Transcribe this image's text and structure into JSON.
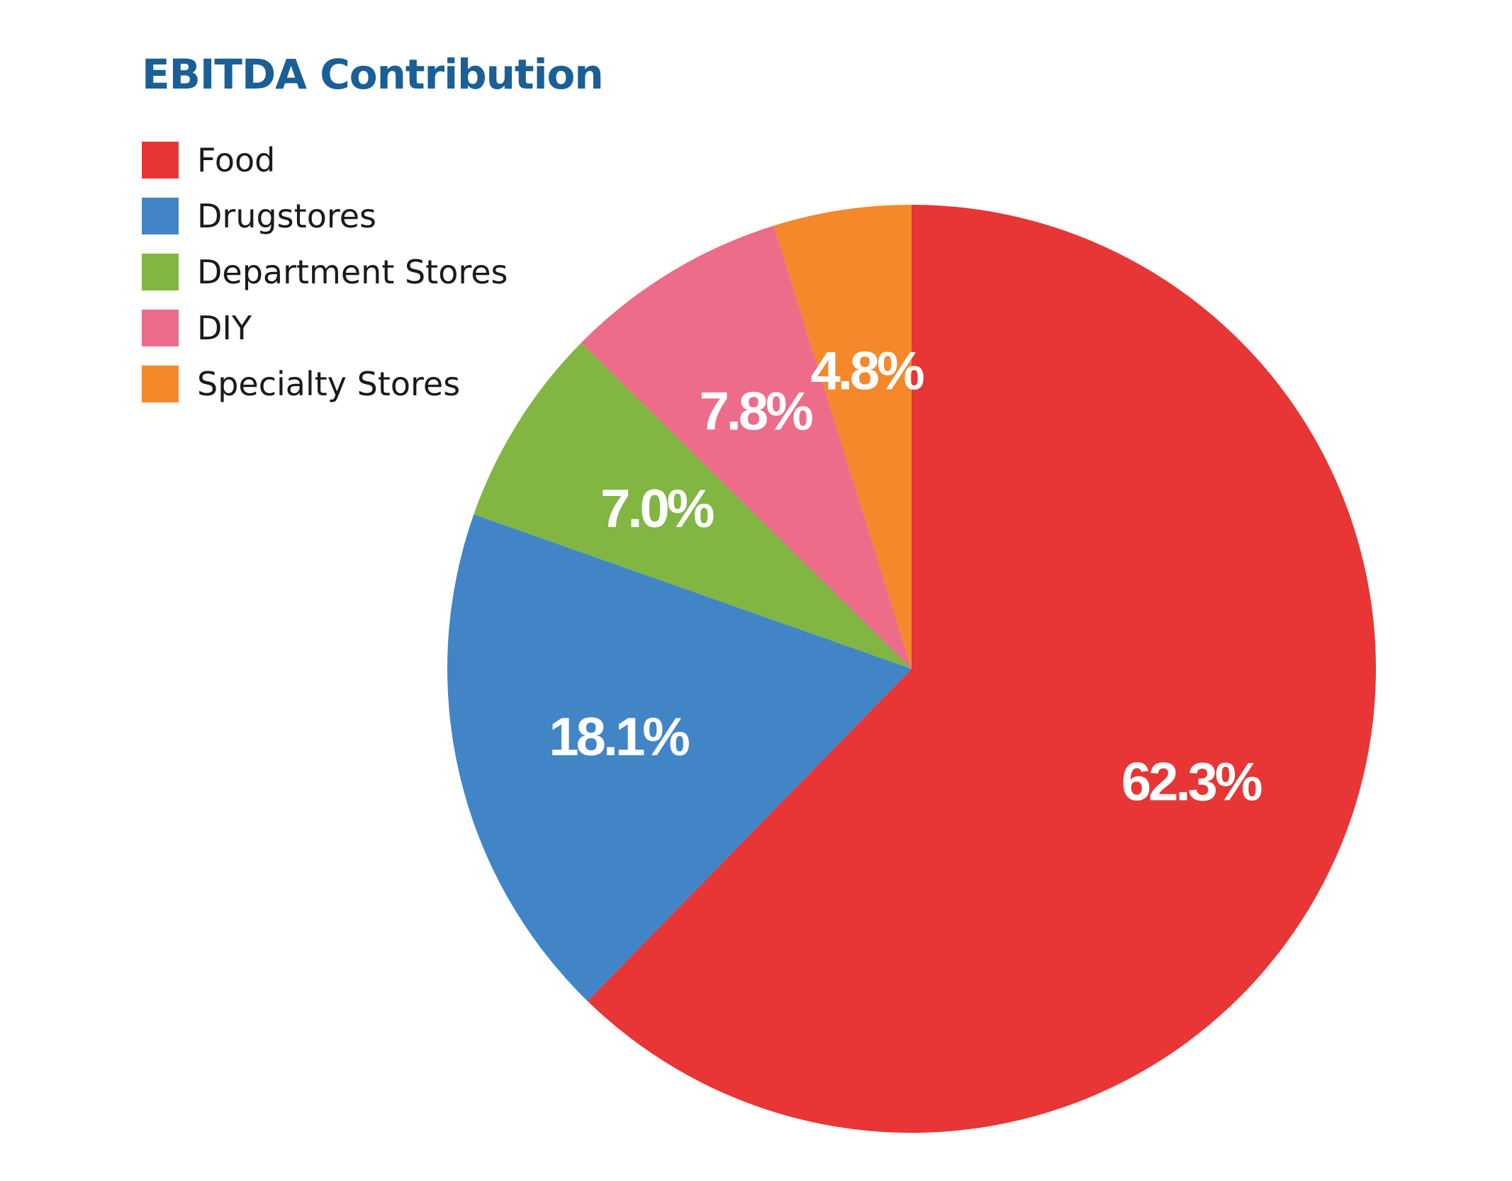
{
  "chart_data": {
    "type": "pie",
    "title": "EBITDA Contribution",
    "title_color": "#1a5f96",
    "start": "12 o'clock",
    "direction": "clockwise",
    "legend_position": "top-left",
    "slices": [
      {
        "name": "Food",
        "value": 62.3,
        "label": "62.3%",
        "color": "#e83535"
      },
      {
        "name": "Drugstores",
        "value": 18.1,
        "label": "18.1%",
        "color": "#4185c7"
      },
      {
        "name": "Department Stores",
        "value": 7.0,
        "label": "7.0%",
        "color": "#80b641"
      },
      {
        "name": "DIY",
        "value": 7.8,
        "label": "7.8%",
        "color": "#ec6c8a"
      },
      {
        "name": "Specialty Stores",
        "value": 4.8,
        "label": "4.8%",
        "color": "#f5882a"
      }
    ]
  }
}
